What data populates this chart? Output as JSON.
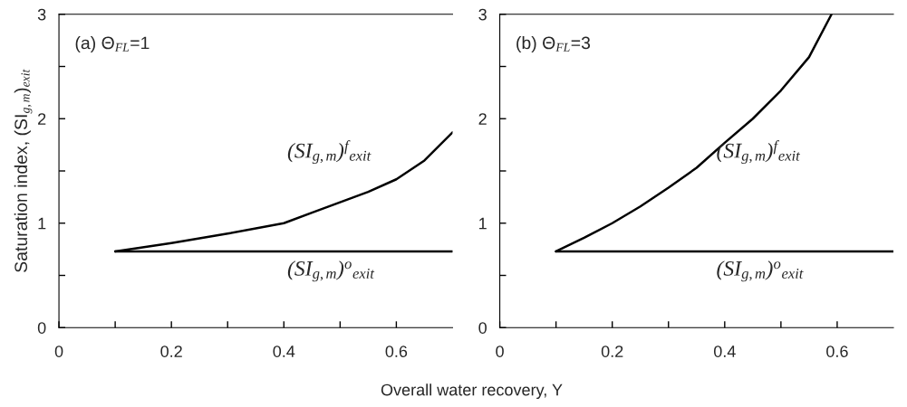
{
  "chart_data": [
    {
      "type": "line",
      "title": "(a) Θ$_{FL}$=1",
      "ylabel": "Saturation index, (SI$_{g,m}$)$_{exit}$",
      "xlabel": "Overall water recovery, Y",
      "xlim": [
        0,
        0.7
      ],
      "ylim": [
        0,
        3
      ],
      "xticks": [
        0,
        {
          "value": 0.1,
          "label": null
        },
        0.2,
        {
          "value": 0.3,
          "label": null
        },
        0.4,
        {
          "value": 0.5,
          "label": null
        },
        0.6
      ],
      "yticks": [
        0,
        {
          "value": 0.5,
          "label": null
        },
        1,
        {
          "value": 1.5,
          "label": null
        },
        2,
        {
          "value": 2.5,
          "label": null
        },
        3
      ],
      "grid": false,
      "legend": false,
      "series": [
        {
          "name": "(SI$_{g,m}$)$^{f}$$_{exit}$",
          "color": "#000000",
          "x": [
            0.1,
            0.2,
            0.3,
            0.4,
            0.45,
            0.5,
            0.55,
            0.6,
            0.65,
            0.7
          ],
          "values": [
            0.73,
            0.81,
            0.9,
            1.0,
            1.1,
            1.2,
            1.3,
            1.42,
            1.6,
            1.87
          ]
        },
        {
          "name": "(SI$_{g,m}$)$^{o}$$_{exit}$",
          "color": "#000000",
          "x": [
            0.1,
            0.7
          ],
          "values": [
            0.73,
            0.73
          ]
        }
      ]
    },
    {
      "type": "line",
      "title": "(b) Θ$_{FL}$=3",
      "xlim": [
        0,
        0.7
      ],
      "ylim": [
        0,
        3
      ],
      "xticks": [
        0,
        {
          "value": 0.1,
          "label": null
        },
        0.2,
        {
          "value": 0.3,
          "label": null
        },
        0.4,
        {
          "value": 0.5,
          "label": null
        },
        0.6
      ],
      "yticks": [
        0,
        {
          "value": 0.5,
          "label": null
        },
        1,
        {
          "value": 1.5,
          "label": null
        },
        2,
        {
          "value": 2.5,
          "label": null
        },
        3
      ],
      "grid": false,
      "legend": false,
      "series": [
        {
          "name": "(SI$_{g,m}$)$^{f}$$_{exit}$",
          "color": "#000000",
          "x": [
            0.1,
            0.15,
            0.2,
            0.25,
            0.3,
            0.35,
            0.4,
            0.45,
            0.5,
            0.55,
            0.59
          ],
          "values": [
            0.73,
            0.86,
            1.0,
            1.16,
            1.34,
            1.53,
            1.77,
            2.0,
            2.27,
            2.59,
            3.0
          ]
        },
        {
          "name": "(SI$_{g,m}$)$^{o}$$_{exit}$",
          "color": "#000000",
          "x": [
            0.1,
            0.7
          ],
          "values": [
            0.73,
            0.73
          ]
        }
      ]
    }
  ]
}
